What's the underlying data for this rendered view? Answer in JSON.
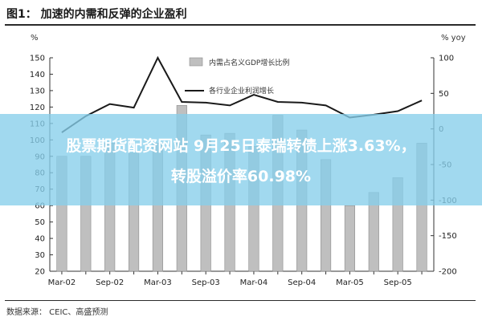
{
  "title": "图1： 加速的内需和反弹的企业盈利",
  "source": "数据来源： CEIC、高盛预测",
  "banner": {
    "line1": "股票期货配资网站 9月25日泰瑞转债上涨3.63%，",
    "line2": "转股溢价率60.98%"
  },
  "chart_data": {
    "type": "bar",
    "y_left_label": "%",
    "y_right_label": "% yoy",
    "y_left_lim": [
      20,
      150
    ],
    "y_left_ticks": [
      20,
      30,
      40,
      50,
      60,
      70,
      80,
      90,
      100,
      110,
      120,
      130,
      140,
      150
    ],
    "y_right_lim": [
      -200,
      100
    ],
    "y_right_ticks": [
      -200,
      -150,
      -100,
      -50,
      0,
      50,
      100
    ],
    "x_tick_labels": [
      "Mar-02",
      "Sep-02",
      "Mar-03",
      "Sep-03",
      "Mar-04",
      "Sep-04",
      "Mar-05",
      "Sep-05"
    ],
    "x": [
      "Mar-02",
      "Jun-02",
      "Sep-02",
      "Dec-02",
      "Mar-03",
      "Jun-03",
      "Sep-03",
      "Dec-03",
      "Mar-04",
      "Jun-04",
      "Sep-04",
      "Dec-04",
      "Mar-05",
      "Jun-05",
      "Sep-05",
      "Dec-05"
    ],
    "series": [
      {
        "name": "内需占名义GDP增长比例",
        "axis": "left",
        "type": "bar",
        "color": "#bfbfbf",
        "values": [
          90,
          90,
          98,
          92,
          98,
          121,
          103,
          104,
          96,
          115,
          106,
          88,
          60,
          68,
          77,
          98
        ]
      },
      {
        "name": "各行业企业利润增长",
        "axis": "right",
        "type": "line",
        "color": "#1a1a1a",
        "values": [
          -5,
          18,
          35,
          30,
          100,
          38,
          37,
          33,
          48,
          38,
          37,
          33,
          16,
          20,
          25,
          40
        ]
      }
    ],
    "legend_position": "top-center",
    "grid": false
  },
  "colors": {
    "bar": "#bfbfbf",
    "bar_stroke": "#8c8c8c",
    "line": "#1a1a1a",
    "banner": "#87ceeb",
    "banner_text": "#ffffff"
  }
}
